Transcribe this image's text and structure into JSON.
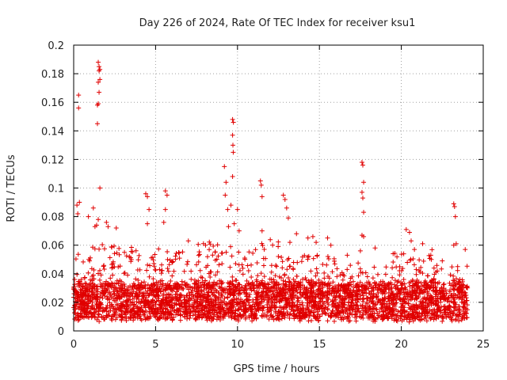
{
  "chart_data": {
    "type": "scatter",
    "title": "Day 226 of 2024, Rate Of TEC Index for receiver ksu1",
    "xlabel": "GPS time / hours",
    "ylabel": "ROTI / TECUs",
    "xlim": [
      0,
      25
    ],
    "ylim": [
      0,
      0.2
    ],
    "xticks": [
      0,
      5,
      10,
      15,
      20,
      25
    ],
    "yticks": [
      0,
      0.02,
      0.04,
      0.06,
      0.08,
      0.1,
      0.12,
      0.14,
      0.16,
      0.18,
      0.2
    ],
    "grid": true,
    "marker": "+",
    "color": "#e00000",
    "series": [
      {
        "name": "ROTI",
        "x": [
          0.3,
          0.3,
          0.35,
          0.2,
          0.25,
          1.5,
          1.55,
          1.6,
          1.55,
          1.6,
          1.5,
          1.55,
          1.45,
          1.5,
          1.45,
          1.6,
          1.5,
          1.4,
          1.3,
          1.2,
          0.9,
          2.0,
          2.1,
          2.6,
          3.1,
          3.4,
          4.4,
          4.5,
          4.6,
          4.5,
          5.6,
          5.7,
          5.6,
          5.5,
          7.0,
          9.2,
          9.3,
          9.25,
          9.4,
          9.45,
          9.7,
          9.75,
          9.7,
          9.72,
          9.74,
          9.7,
          9.6,
          9.8,
          10.0,
          10.1,
          11.4,
          11.45,
          11.5,
          11.5,
          12.8,
          12.9,
          13.0,
          13.1,
          13.2,
          13.6,
          14.3,
          14.6,
          14.8,
          15.5,
          15.7,
          16.7,
          17.6,
          17.65,
          17.7,
          17.6,
          17.65,
          17.7,
          17.6,
          17.7,
          17.5,
          18.4,
          19.5,
          20.3,
          20.5,
          20.6,
          20.8,
          21.3,
          21.8,
          22.5,
          23.2,
          23.25,
          23.3,
          23.35,
          23.2,
          23.9
        ],
        "y": [
          0.165,
          0.156,
          0.09,
          0.088,
          0.082,
          0.188,
          0.185,
          0.183,
          0.182,
          0.176,
          0.174,
          0.167,
          0.158,
          0.159,
          0.145,
          0.1,
          0.078,
          0.074,
          0.073,
          0.086,
          0.08,
          0.076,
          0.073,
          0.072,
          0.055,
          0.052,
          0.096,
          0.094,
          0.085,
          0.075,
          0.098,
          0.095,
          0.085,
          0.076,
          0.063,
          0.115,
          0.104,
          0.095,
          0.085,
          0.073,
          0.148,
          0.146,
          0.137,
          0.13,
          0.125,
          0.108,
          0.088,
          0.075,
          0.085,
          0.07,
          0.105,
          0.102,
          0.094,
          0.07,
          0.095,
          0.092,
          0.086,
          0.079,
          0.062,
          0.068,
          0.065,
          0.066,
          0.062,
          0.065,
          0.06,
          0.053,
          0.118,
          0.116,
          0.104,
          0.097,
          0.093,
          0.083,
          0.067,
          0.066,
          0.056,
          0.058,
          0.054,
          0.071,
          0.069,
          0.063,
          0.057,
          0.061,
          0.053,
          0.049,
          0.089,
          0.087,
          0.08,
          0.061,
          0.06,
          0.057
        ]
      }
    ]
  }
}
